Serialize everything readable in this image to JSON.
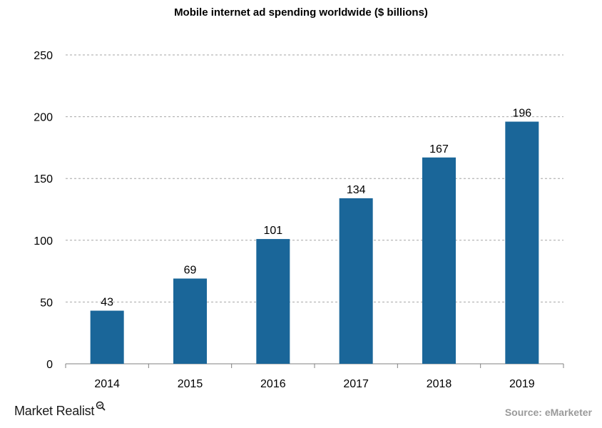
{
  "chart_data": {
    "type": "bar",
    "title": "Mobile internet ad spending worldwide ($ billions)",
    "categories": [
      "2014",
      "2015",
      "2016",
      "2017",
      "2018",
      "2019"
    ],
    "values": [
      43,
      69,
      101,
      134,
      167,
      196
    ],
    "data_labels": [
      "43",
      "69",
      "101",
      "134",
      "167",
      "196"
    ],
    "ylim": [
      0,
      250
    ],
    "yticks": [
      0,
      50,
      100,
      150,
      200,
      250
    ],
    "grid": true,
    "bar_color": "#1a6699"
  },
  "footer": {
    "brand": "Market Realist",
    "brand_icon": "magnifier-chart-icon",
    "source": "Source: eMarketer"
  }
}
